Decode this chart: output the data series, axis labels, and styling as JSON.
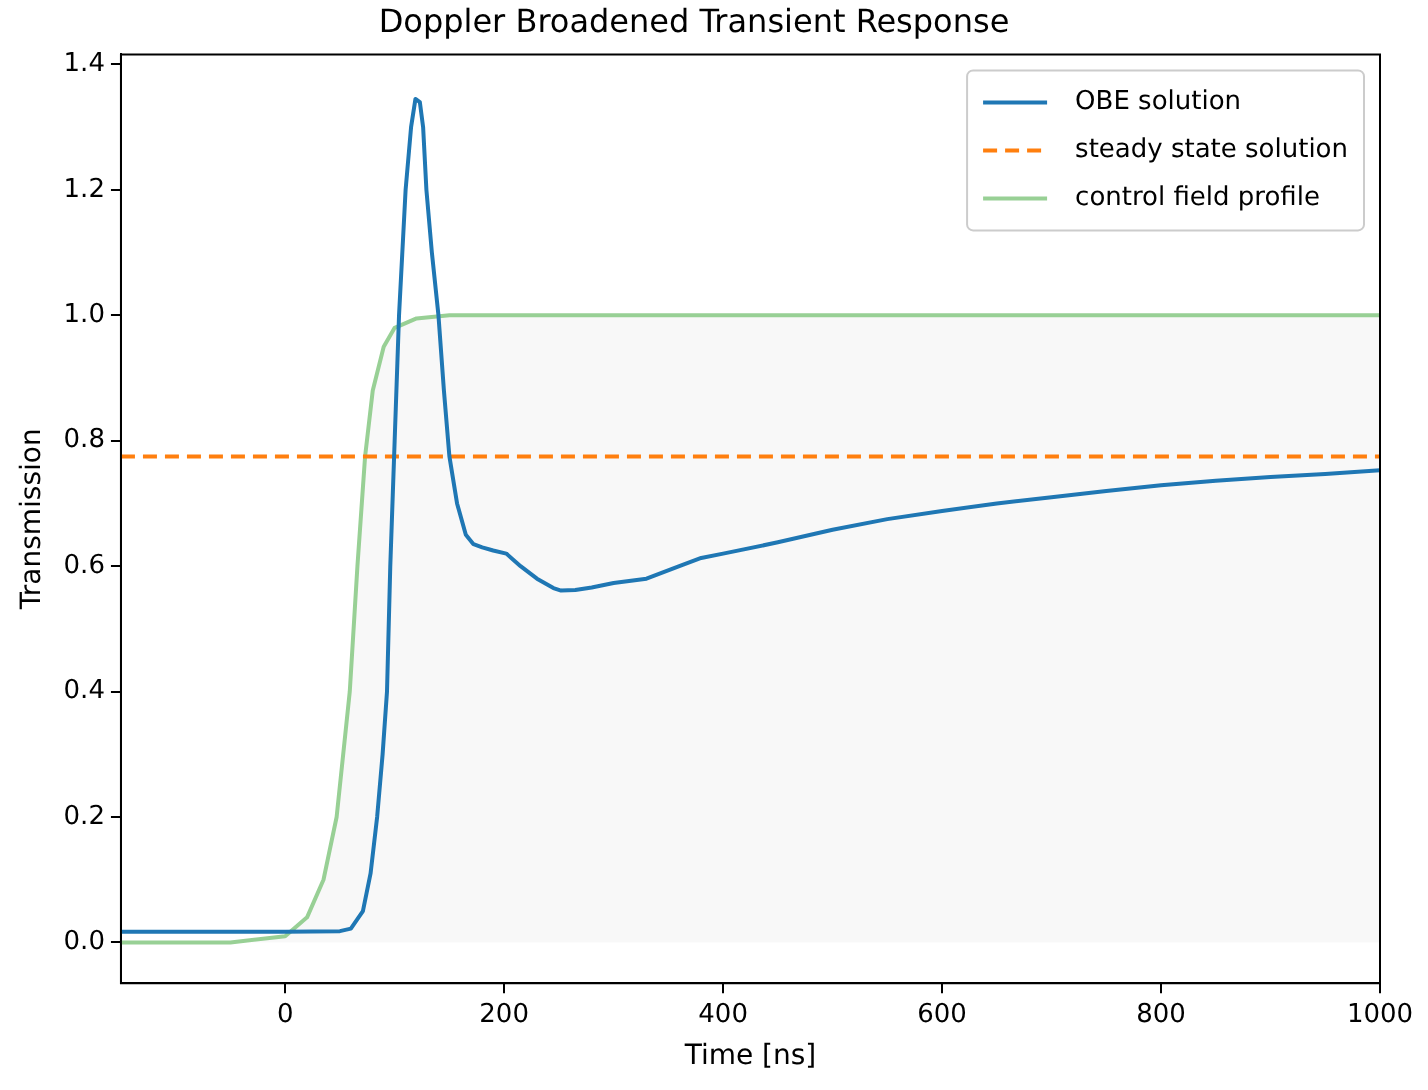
{
  "chart_data": {
    "type": "line",
    "title": "Doppler Broadened Transient Response",
    "xlabel": "Time [ns]",
    "ylabel": "Transmission",
    "xlim": [
      -150,
      1000
    ],
    "xticks": [
      0,
      200,
      400,
      600,
      800,
      1000
    ],
    "ylim": [
      -0.065,
      1.416
    ],
    "yticks": [
      {
        "value": 0,
        "label": "0.0"
      },
      0.2,
      0.4,
      0.6,
      0.8,
      {
        "value": 1,
        "label": "1.0"
      },
      1.2,
      1.4
    ],
    "grid": false,
    "legend": "top right",
    "marker": "none",
    "series": [
      {
        "name": "OBE solution",
        "color": "#1f77b4",
        "x": [
          -150,
          0,
          50,
          60,
          71,
          78,
          84,
          89,
          93,
          96,
          100,
          104,
          110,
          115,
          119,
          123,
          126,
          129,
          134,
          140,
          145,
          150,
          157,
          165,
          172,
          180,
          190,
          202,
          215,
          230,
          245,
          252,
          265,
          280,
          300,
          330,
          360,
          380,
          400,
          450,
          500,
          550,
          600,
          650,
          700,
          750,
          800,
          850,
          900,
          950,
          1000
        ],
        "values": [
          0.017,
          0.017,
          0.018,
          0.022,
          0.05,
          0.11,
          0.2,
          0.3,
          0.4,
          0.6,
          0.8,
          1.0,
          1.2,
          1.3,
          1.345,
          1.34,
          1.3,
          1.2,
          1.1,
          1.0,
          0.88,
          0.775,
          0.7,
          0.65,
          0.635,
          0.63,
          0.625,
          0.62,
          0.6,
          0.58,
          0.565,
          0.561,
          0.562,
          0.566,
          0.573,
          0.58,
          0.6,
          0.613,
          0.62,
          0.638,
          0.658,
          0.675,
          0.688,
          0.7,
          0.71,
          0.72,
          0.729,
          0.736,
          0.742,
          0.747,
          0.753
        ]
      },
      {
        "name": "steady state solution",
        "color": "#ff7f0e",
        "line_style": "dashed",
        "x": [
          -150,
          1000
        ],
        "values": [
          0.775,
          0.775
        ]
      },
      {
        "name": "control field profile",
        "type": "area",
        "color": "#98d095",
        "x": [
          -150,
          -50,
          0,
          20,
          35,
          47,
          59,
          66,
          73,
          80,
          90,
          100,
          120,
          150,
          1000
        ],
        "values": [
          0,
          0,
          0.01,
          0.04,
          0.1,
          0.2,
          0.4,
          0.6,
          0.775,
          0.88,
          0.95,
          0.98,
          0.995,
          1,
          1
        ]
      }
    ]
  }
}
